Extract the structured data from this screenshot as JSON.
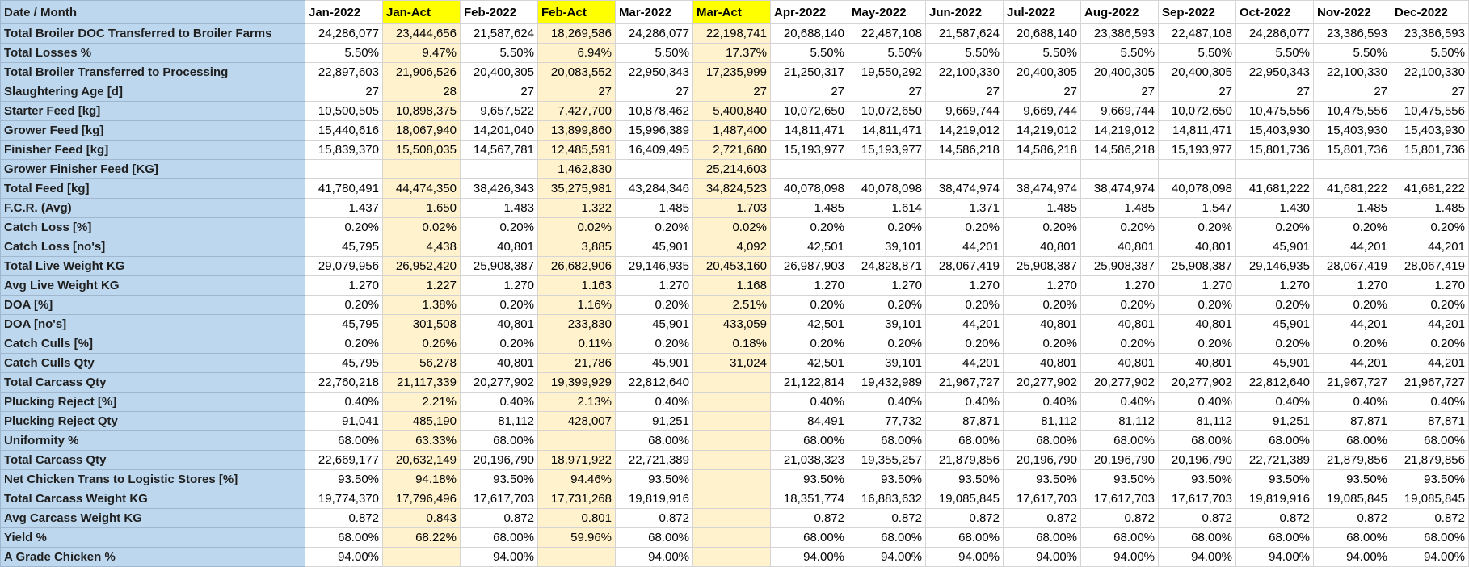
{
  "header": {
    "label": "Date / Month",
    "columns": [
      "Jan-2022",
      "Jan-Act",
      "Feb-2022",
      "Feb-Act",
      "Mar-2022",
      "Mar-Act",
      "Apr-2022",
      "May-2022",
      "Jun-2022",
      "Jul-2022",
      "Aug-2022",
      "Sep-2022",
      "Oct-2022",
      "Nov-2022",
      "Dec-2022"
    ]
  },
  "rows": [
    {
      "label": "Total Broiler DOC Transferred to Broiler Farms",
      "cells": [
        "24,286,077",
        "23,444,656",
        "21,587,624",
        "18,269,586",
        "24,286,077",
        "22,198,741",
        "20,688,140",
        "22,487,108",
        "21,587,624",
        "20,688,140",
        "23,386,593",
        "22,487,108",
        "24,286,077",
        "23,386,593",
        "23,386,593"
      ]
    },
    {
      "label": "Total Losses %",
      "cells": [
        "5.50%",
        "9.47%",
        "5.50%",
        "6.94%",
        "5.50%",
        "17.37%",
        "5.50%",
        "5.50%",
        "5.50%",
        "5.50%",
        "5.50%",
        "5.50%",
        "5.50%",
        "5.50%",
        "5.50%"
      ]
    },
    {
      "label": "Total Broiler Transferred to Processing",
      "cells": [
        "22,897,603",
        "21,906,526",
        "20,400,305",
        "20,083,552",
        "22,950,343",
        "17,235,999",
        "21,250,317",
        "19,550,292",
        "22,100,330",
        "20,400,305",
        "20,400,305",
        "20,400,305",
        "22,950,343",
        "22,100,330",
        "22,100,330"
      ]
    },
    {
      "label": "Slaughtering Age [d]",
      "cells": [
        "27",
        "28",
        "27",
        "27",
        "27",
        "27",
        "27",
        "27",
        "27",
        "27",
        "27",
        "27",
        "27",
        "27",
        "27"
      ]
    },
    {
      "label": "Starter Feed [kg]",
      "cells": [
        "10,500,505",
        "10,898,375",
        "9,657,522",
        "7,427,700",
        "10,878,462",
        "5,400,840",
        "10,072,650",
        "10,072,650",
        "9,669,744",
        "9,669,744",
        "9,669,744",
        "10,072,650",
        "10,475,556",
        "10,475,556",
        "10,475,556"
      ]
    },
    {
      "label": "Grower Feed [kg]",
      "cells": [
        "15,440,616",
        "18,067,940",
        "14,201,040",
        "13,899,860",
        "15,996,389",
        "1,487,400",
        "14,811,471",
        "14,811,471",
        "14,219,012",
        "14,219,012",
        "14,219,012",
        "14,811,471",
        "15,403,930",
        "15,403,930",
        "15,403,930"
      ]
    },
    {
      "label": "Finisher Feed [kg]",
      "cells": [
        "15,839,370",
        "15,508,035",
        "14,567,781",
        "12,485,591",
        "16,409,495",
        "2,721,680",
        "15,193,977",
        "15,193,977",
        "14,586,218",
        "14,586,218",
        "14,586,218",
        "15,193,977",
        "15,801,736",
        "15,801,736",
        "15,801,736"
      ]
    },
    {
      "label": "Grower Finisher Feed [KG]",
      "cells": [
        null,
        null,
        null,
        "1,462,830",
        null,
        "25,214,603",
        null,
        null,
        null,
        null,
        null,
        null,
        null,
        null,
        null
      ]
    },
    {
      "label": "Total Feed [kg]",
      "cells": [
        "41,780,491",
        "44,474,350",
        "38,426,343",
        "35,275,981",
        "43,284,346",
        "34,824,523",
        "40,078,098",
        "40,078,098",
        "38,474,974",
        "38,474,974",
        "38,474,974",
        "40,078,098",
        "41,681,222",
        "41,681,222",
        "41,681,222"
      ]
    },
    {
      "label": "F.C.R. (Avg)",
      "cells": [
        "1.437",
        "1.650",
        "1.483",
        "1.322",
        "1.485",
        "1.703",
        "1.485",
        "1.614",
        "1.371",
        "1.485",
        "1.485",
        "1.547",
        "1.430",
        "1.485",
        "1.485"
      ]
    },
    {
      "label": "Catch Loss [%]",
      "cells": [
        "0.20%",
        "0.02%",
        "0.20%",
        "0.02%",
        "0.20%",
        "0.02%",
        "0.20%",
        "0.20%",
        "0.20%",
        "0.20%",
        "0.20%",
        "0.20%",
        "0.20%",
        "0.20%",
        "0.20%"
      ]
    },
    {
      "label": "Catch Loss [no's]",
      "cells": [
        "45,795",
        "4,438",
        "40,801",
        "3,885",
        "45,901",
        "4,092",
        "42,501",
        "39,101",
        "44,201",
        "40,801",
        "40,801",
        "40,801",
        "45,901",
        "44,201",
        "44,201"
      ]
    },
    {
      "label": "Total Live Weight KG",
      "cells": [
        "29,079,956",
        "26,952,420",
        "25,908,387",
        "26,682,906",
        "29,146,935",
        "20,453,160",
        "26,987,903",
        "24,828,871",
        "28,067,419",
        "25,908,387",
        "25,908,387",
        "25,908,387",
        "29,146,935",
        "28,067,419",
        "28,067,419"
      ]
    },
    {
      "label": "Avg Live Weight KG",
      "cells": [
        "1.270",
        "1.227",
        "1.270",
        "1.163",
        "1.270",
        "1.168",
        "1.270",
        "1.270",
        "1.270",
        "1.270",
        "1.270",
        "1.270",
        "1.270",
        "1.270",
        "1.270"
      ]
    },
    {
      "label": "DOA [%]",
      "cells": [
        "0.20%",
        "1.38%",
        "0.20%",
        "1.16%",
        "0.20%",
        "2.51%",
        "0.20%",
        "0.20%",
        "0.20%",
        "0.20%",
        "0.20%",
        "0.20%",
        "0.20%",
        "0.20%",
        "0.20%"
      ]
    },
    {
      "label": "DOA [no's]",
      "cells": [
        "45,795",
        "301,508",
        "40,801",
        "233,830",
        "45,901",
        "433,059",
        "42,501",
        "39,101",
        "44,201",
        "40,801",
        "40,801",
        "40,801",
        "45,901",
        "44,201",
        "44,201"
      ]
    },
    {
      "label": "Catch Culls [%]",
      "cells": [
        "0.20%",
        "0.26%",
        "0.20%",
        "0.11%",
        "0.20%",
        "0.18%",
        "0.20%",
        "0.20%",
        "0.20%",
        "0.20%",
        "0.20%",
        "0.20%",
        "0.20%",
        "0.20%",
        "0.20%"
      ]
    },
    {
      "label": "Catch Culls Qty",
      "cells": [
        "45,795",
        "56,278",
        "40,801",
        "21,786",
        "45,901",
        "31,024",
        "42,501",
        "39,101",
        "44,201",
        "40,801",
        "40,801",
        "40,801",
        "45,901",
        "44,201",
        "44,201"
      ]
    },
    {
      "label": "Total Carcass Qty",
      "cells": [
        "22,760,218",
        "21,117,339",
        "20,277,902",
        "19,399,929",
        "22,812,640",
        null,
        "21,122,814",
        "19,432,989",
        "21,967,727",
        "20,277,902",
        "20,277,902",
        "20,277,902",
        "22,812,640",
        "21,967,727",
        "21,967,727"
      ]
    },
    {
      "label": "Plucking Reject [%]",
      "cells": [
        "0.40%",
        "2.21%",
        "0.40%",
        "2.13%",
        "0.40%",
        null,
        "0.40%",
        "0.40%",
        "0.40%",
        "0.40%",
        "0.40%",
        "0.40%",
        "0.40%",
        "0.40%",
        "0.40%"
      ]
    },
    {
      "label": "Plucking Reject Qty",
      "cells": [
        "91,041",
        "485,190",
        "81,112",
        "428,007",
        "91,251",
        null,
        "84,491",
        "77,732",
        "87,871",
        "81,112",
        "81,112",
        "81,112",
        "91,251",
        "87,871",
        "87,871"
      ]
    },
    {
      "label": "Uniformity %",
      "cells": [
        "68.00%",
        "63.33%",
        "68.00%",
        null,
        "68.00%",
        null,
        "68.00%",
        "68.00%",
        "68.00%",
        "68.00%",
        "68.00%",
        "68.00%",
        "68.00%",
        "68.00%",
        "68.00%"
      ]
    },
    {
      "label": "Total Carcass Qty",
      "cells": [
        "22,669,177",
        "20,632,149",
        "20,196,790",
        "18,971,922",
        "22,721,389",
        null,
        "21,038,323",
        "19,355,257",
        "21,879,856",
        "20,196,790",
        "20,196,790",
        "20,196,790",
        "22,721,389",
        "21,879,856",
        "21,879,856"
      ]
    },
    {
      "label": "Net Chicken Trans to Logistic Stores [%]",
      "cells": [
        "93.50%",
        "94.18%",
        "93.50%",
        "94.46%",
        "93.50%",
        null,
        "93.50%",
        "93.50%",
        "93.50%",
        "93.50%",
        "93.50%",
        "93.50%",
        "93.50%",
        "93.50%",
        "93.50%"
      ]
    },
    {
      "label": "Total Carcass Weight KG",
      "cells": [
        "19,774,370",
        "17,796,496",
        "17,617,703",
        "17,731,268",
        "19,819,916",
        null,
        "18,351,774",
        "16,883,632",
        "19,085,845",
        "17,617,703",
        "17,617,703",
        "17,617,703",
        "19,819,916",
        "19,085,845",
        "19,085,845"
      ]
    },
    {
      "label": "Avg Carcass Weight KG",
      "cells": [
        "0.872",
        "0.843",
        "0.872",
        "0.801",
        "0.872",
        null,
        "0.872",
        "0.872",
        "0.872",
        "0.872",
        "0.872",
        "0.872",
        "0.872",
        "0.872",
        "0.872"
      ]
    },
    {
      "label": "Yield %",
      "cells": [
        "68.00%",
        "68.22%",
        "68.00%",
        "59.96%",
        "68.00%",
        null,
        "68.00%",
        "68.00%",
        "68.00%",
        "68.00%",
        "68.00%",
        "68.00%",
        "68.00%",
        "68.00%",
        "68.00%"
      ]
    },
    {
      "label": "A Grade Chicken %",
      "cells": [
        "94.00%",
        null,
        "94.00%",
        null,
        "94.00%",
        null,
        "94.00%",
        "94.00%",
        "94.00%",
        "94.00%",
        "94.00%",
        "94.00%",
        "94.00%",
        "94.00%",
        "94.00%"
      ]
    }
  ]
}
